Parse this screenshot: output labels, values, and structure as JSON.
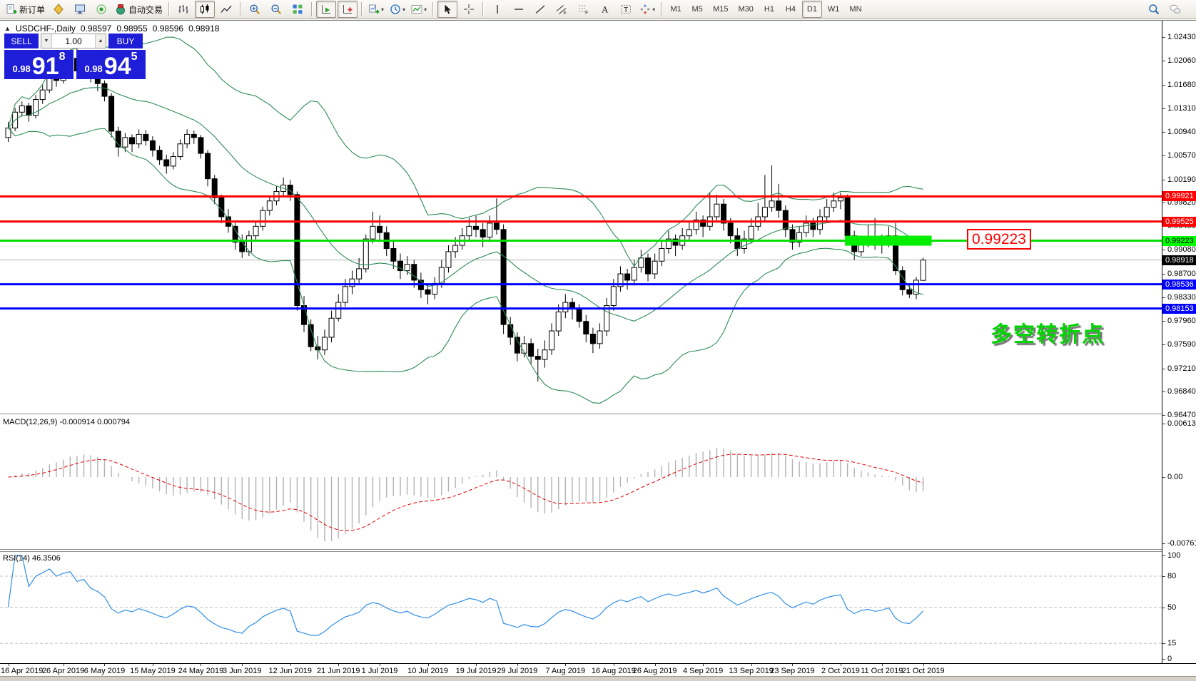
{
  "toolbar": {
    "groups": [
      {
        "items": [
          {
            "name": "new-order-button",
            "icon": "new-order",
            "label": "新订单"
          },
          {
            "name": "metaeditor-button",
            "icon": "metaeditor"
          },
          {
            "name": "terminal-button",
            "icon": "terminal"
          },
          {
            "name": "signals-button",
            "icon": "signals"
          },
          {
            "name": "autotrading-button",
            "icon": "autotrading",
            "label": "自动交易"
          }
        ]
      },
      {
        "items": [
          {
            "name": "bar-chart-button",
            "icon": "bar-chart"
          },
          {
            "name": "candlestick-button",
            "icon": "candlestick",
            "pressed": true
          },
          {
            "name": "line-chart-button",
            "icon": "line-chart"
          }
        ]
      },
      {
        "items": [
          {
            "name": "zoom-in-button",
            "icon": "zoom-in"
          },
          {
            "name": "zoom-out-button",
            "icon": "zoom-out"
          },
          {
            "name": "tile-windows-button",
            "icon": "tile-windows"
          }
        ]
      },
      {
        "items": [
          {
            "name": "auto-scroll-button",
            "icon": "auto-scroll",
            "pressed": true
          },
          {
            "name": "chart-shift-button",
            "icon": "chart-shift",
            "pressed": true
          }
        ]
      },
      {
        "items": [
          {
            "name": "new-chart-button",
            "icon": "new-chart",
            "dropdown": true
          },
          {
            "name": "profiles-button",
            "icon": "clock",
            "dropdown": true
          },
          {
            "name": "indicators-button",
            "icon": "indicators",
            "dropdown": true
          }
        ]
      },
      {
        "items": [
          {
            "name": "cursor-button",
            "icon": "cursor",
            "pressed": true
          },
          {
            "name": "crosshair-button",
            "icon": "crosshair"
          }
        ]
      },
      {
        "items": [
          {
            "name": "vertical-line-button",
            "icon": "vline"
          },
          {
            "name": "horizontal-line-button",
            "icon": "hline"
          },
          {
            "name": "trendline-button",
            "icon": "trendline"
          },
          {
            "name": "channel-button",
            "icon": "channel"
          },
          {
            "name": "fibonacci-button",
            "icon": "fibonacci"
          },
          {
            "name": "text-button",
            "icon": "text-a"
          },
          {
            "name": "text-label-button",
            "icon": "text-label"
          },
          {
            "name": "shapes-button",
            "icon": "shapes",
            "dropdown": true
          }
        ]
      },
      {
        "items": [
          {
            "name": "tf-m1-button",
            "text": "M1"
          },
          {
            "name": "tf-m5-button",
            "text": "M5"
          },
          {
            "name": "tf-m15-button",
            "text": "M15"
          },
          {
            "name": "tf-m30-button",
            "text": "M30"
          },
          {
            "name": "tf-h1-button",
            "text": "H1"
          },
          {
            "name": "tf-h4-button",
            "text": "H4"
          },
          {
            "name": "tf-d1-button",
            "text": "D1",
            "pressed": true
          },
          {
            "name": "tf-w1-button",
            "text": "W1"
          },
          {
            "name": "tf-mn-button",
            "text": "MN"
          }
        ]
      }
    ],
    "right_items": [
      {
        "name": "search-button",
        "icon": "search"
      },
      {
        "name": "chat-button",
        "icon": "chat"
      }
    ]
  },
  "chart": {
    "collapse_glyph": "▲",
    "title": "USDCHF-,Daily",
    "ohlc": {
      "open": "0.98597",
      "high": "0.98955",
      "low": "0.98596",
      "close": "0.98918"
    },
    "one_click": {
      "sell_label": "SELL",
      "buy_label": "BUY",
      "volume": "1.00",
      "spin_down_glyph": "▼",
      "spin_up_glyph": "▲",
      "sell_price": {
        "small": "0.98",
        "big": "91",
        "sup": "8"
      },
      "buy_price": {
        "small": "0.98",
        "big": "94",
        "sup": "5"
      }
    },
    "callout": {
      "text": "0.99223",
      "color": "#ff0000"
    },
    "annotation": {
      "text": "多空转折点",
      "color": "#00d400"
    }
  },
  "chart_data": {
    "type": "candlestick",
    "symbol": "USDCHF",
    "timeframe": "Daily",
    "price_axis": {
      "top": 1.02693,
      "bottom": 0.96496,
      "ticks": [
        "1.02430",
        "1.02060",
        "1.01680",
        "1.01310",
        "1.00940",
        "1.00570",
        "1.00190",
        "0.99820",
        "0.99450",
        "0.99080",
        "0.98700",
        "0.98330",
        "0.97960",
        "0.97590",
        "0.97210",
        "0.96840",
        "0.96470"
      ]
    },
    "candles": [
      [
        1.0085,
        1.011,
        1.0078,
        1.01
      ],
      [
        1.01,
        1.0132,
        1.0095,
        1.0125
      ],
      [
        1.0125,
        1.0142,
        1.0118,
        1.0135
      ],
      [
        1.0135,
        1.014,
        1.011,
        1.012
      ],
      [
        1.012,
        1.0152,
        1.0115,
        1.0145
      ],
      [
        1.0145,
        1.0168,
        1.0138,
        1.016
      ],
      [
        1.016,
        1.0192,
        1.0155,
        1.0185
      ],
      [
        1.0185,
        1.0195,
        1.0165,
        1.0175
      ],
      [
        1.0175,
        1.0202,
        1.017,
        1.0195
      ],
      [
        1.0195,
        1.0218,
        1.0188,
        1.021
      ],
      [
        1.021,
        1.0226,
        1.0182,
        1.019
      ],
      [
        1.019,
        1.0212,
        1.0183,
        1.0205
      ],
      [
        1.0205,
        1.0211,
        1.0172,
        1.018
      ],
      [
        1.018,
        1.0188,
        1.0158,
        1.017
      ],
      [
        1.017,
        1.0175,
        1.0142,
        1.015
      ],
      [
        1.015,
        1.0155,
        1.0085,
        1.0095
      ],
      [
        1.0095,
        1.0102,
        1.0055,
        1.007
      ],
      [
        1.007,
        1.0092,
        1.0062,
        1.0085
      ],
      [
        1.0085,
        1.009,
        1.0062,
        1.0075
      ],
      [
        1.0075,
        1.0098,
        1.0068,
        1.009
      ],
      [
        1.009,
        1.0097,
        1.0072,
        1.008
      ],
      [
        1.008,
        1.0087,
        1.0055,
        1.0065
      ],
      [
        1.0065,
        1.0072,
        1.0042,
        1.005
      ],
      [
        1.005,
        1.0058,
        1.0028,
        1.004
      ],
      [
        1.004,
        1.0062,
        1.0035,
        1.0055
      ],
      [
        1.0055,
        1.0082,
        1.005,
        1.0075
      ],
      [
        1.0075,
        1.0098,
        1.0068,
        1.009
      ],
      [
        1.009,
        1.0096,
        1.0075,
        1.0085
      ],
      [
        1.0085,
        1.0089,
        1.0052,
        1.006
      ],
      [
        1.006,
        1.0065,
        1.0008,
        1.002
      ],
      [
        1.002,
        1.0026,
        0.998,
        0.999
      ],
      [
        0.999,
        0.9995,
        0.995,
        0.996
      ],
      [
        0.996,
        0.9972,
        0.9935,
        0.9945
      ],
      [
        0.9945,
        0.995,
        0.9908,
        0.992
      ],
      [
        0.992,
        0.9932,
        0.9895,
        0.9905
      ],
      [
        0.9905,
        0.9938,
        0.9898,
        0.993
      ],
      [
        0.993,
        0.9952,
        0.9922,
        0.9945
      ],
      [
        0.9945,
        0.9976,
        0.9938,
        0.997
      ],
      [
        0.997,
        0.9992,
        0.9962,
        0.9985
      ],
      [
        0.9985,
        1.0008,
        0.9978,
        1.0
      ],
      [
        1.0,
        1.0022,
        0.9992,
        1.001
      ],
      [
        1.001,
        1.0018,
        0.9985,
        0.9995
      ],
      [
        0.9995,
        1.0,
        0.9812,
        0.982
      ],
      [
        0.982,
        0.9835,
        0.9778,
        0.979
      ],
      [
        0.979,
        0.9798,
        0.9748,
        0.9755
      ],
      [
        0.9755,
        0.9772,
        0.9735,
        0.975
      ],
      [
        0.975,
        0.9782,
        0.9742,
        0.977
      ],
      [
        0.977,
        0.9812,
        0.9762,
        0.98
      ],
      [
        0.98,
        0.9838,
        0.9795,
        0.9825
      ],
      [
        0.9825,
        0.9862,
        0.9818,
        0.985
      ],
      [
        0.985,
        0.9875,
        0.9838,
        0.9862
      ],
      [
        0.9862,
        0.9895,
        0.9855,
        0.9878
      ],
      [
        0.9878,
        0.9932,
        0.9872,
        0.9925
      ],
      [
        0.9925,
        0.9968,
        0.9918,
        0.9945
      ],
      [
        0.9945,
        0.9962,
        0.992,
        0.9935
      ],
      [
        0.9935,
        0.9945,
        0.9898,
        0.991
      ],
      [
        0.991,
        0.9922,
        0.9878,
        0.989
      ],
      [
        0.989,
        0.9902,
        0.9862,
        0.9875
      ],
      [
        0.9875,
        0.9898,
        0.9868,
        0.9885
      ],
      [
        0.9885,
        0.9892,
        0.9848,
        0.986
      ],
      [
        0.986,
        0.9872,
        0.9832,
        0.9845
      ],
      [
        0.9845,
        0.9855,
        0.9822,
        0.9838
      ],
      [
        0.9838,
        0.9865,
        0.983,
        0.9855
      ],
      [
        0.9855,
        0.9892,
        0.9848,
        0.988
      ],
      [
        0.988,
        0.9915,
        0.9872,
        0.9905
      ],
      [
        0.9905,
        0.9928,
        0.9895,
        0.9915
      ],
      [
        0.9915,
        0.9942,
        0.9908,
        0.993
      ],
      [
        0.993,
        0.9958,
        0.9922,
        0.9945
      ],
      [
        0.9945,
        0.9962,
        0.9928,
        0.994
      ],
      [
        0.994,
        0.995,
        0.9912,
        0.9928
      ],
      [
        0.9928,
        0.9962,
        0.992,
        0.995
      ],
      [
        0.995,
        0.9989,
        0.9932,
        0.994
      ],
      [
        0.994,
        0.9948,
        0.9775,
        0.979
      ],
      [
        0.979,
        0.9802,
        0.9758,
        0.977
      ],
      [
        0.977,
        0.9778,
        0.9732,
        0.9745
      ],
      [
        0.9745,
        0.9772,
        0.9738,
        0.976
      ],
      [
        0.976,
        0.9768,
        0.9728,
        0.974
      ],
      [
        0.974,
        0.9752,
        0.97,
        0.9735
      ],
      [
        0.9735,
        0.9765,
        0.9722,
        0.975
      ],
      [
        0.975,
        0.9792,
        0.9742,
        0.978
      ],
      [
        0.978,
        0.9822,
        0.9772,
        0.981
      ],
      [
        0.981,
        0.9838,
        0.98,
        0.9825
      ],
      [
        0.9825,
        0.9832,
        0.9798,
        0.9815
      ],
      [
        0.9815,
        0.9822,
        0.9785,
        0.9795
      ],
      [
        0.9795,
        0.9805,
        0.9762,
        0.9775
      ],
      [
        0.9775,
        0.9785,
        0.9745,
        0.976
      ],
      [
        0.976,
        0.9792,
        0.9752,
        0.978
      ],
      [
        0.978,
        0.9832,
        0.9772,
        0.982
      ],
      [
        0.982,
        0.9862,
        0.9812,
        0.985
      ],
      [
        0.985,
        0.9882,
        0.9842,
        0.987
      ],
      [
        0.987,
        0.9878,
        0.9845,
        0.986
      ],
      [
        0.986,
        0.9892,
        0.9852,
        0.988
      ],
      [
        0.988,
        0.9908,
        0.9872,
        0.9895
      ],
      [
        0.9895,
        0.9902,
        0.9858,
        0.987
      ],
      [
        0.987,
        0.9902,
        0.9862,
        0.989
      ],
      [
        0.989,
        0.9922,
        0.9882,
        0.991
      ],
      [
        0.991,
        0.9938,
        0.9902,
        0.9925
      ],
      [
        0.9925,
        0.9932,
        0.9898,
        0.9915
      ],
      [
        0.9915,
        0.9942,
        0.9908,
        0.993
      ],
      [
        0.993,
        0.9952,
        0.9922,
        0.994
      ],
      [
        0.994,
        0.9968,
        0.9932,
        0.9955
      ],
      [
        0.9955,
        0.9962,
        0.9928,
        0.9945
      ],
      [
        0.9945,
        0.9999,
        0.9938,
        0.996
      ],
      [
        0.996,
        0.9995,
        0.9952,
        0.998
      ],
      [
        0.998,
        0.9988,
        0.9938,
        0.995
      ],
      [
        0.995,
        0.9958,
        0.9918,
        0.993
      ],
      [
        0.993,
        0.9942,
        0.9898,
        0.991
      ],
      [
        0.991,
        0.9938,
        0.9902,
        0.9925
      ],
      [
        0.9925,
        0.9958,
        0.9918,
        0.9945
      ],
      [
        0.9945,
        0.9982,
        0.9938,
        0.996
      ],
      [
        0.996,
        1.0026,
        0.9952,
        0.9975
      ],
      [
        0.9975,
        1.0041,
        0.9968,
        0.9985
      ],
      [
        0.9985,
        1.0012,
        0.9958,
        0.997
      ],
      [
        0.997,
        0.9978,
        0.9928,
        0.994
      ],
      [
        0.994,
        0.9948,
        0.9908,
        0.992
      ],
      [
        0.992,
        0.9945,
        0.9912,
        0.9935
      ],
      [
        0.9935,
        0.9962,
        0.9928,
        0.995
      ],
      [
        0.995,
        0.9958,
        0.9928,
        0.994
      ],
      [
        0.994,
        0.9972,
        0.9932,
        0.996
      ],
      [
        0.996,
        0.9988,
        0.9952,
        0.9975
      ],
      [
        0.9975,
        0.9998,
        0.9968,
        0.9985
      ],
      [
        0.9985,
        0.9998,
        0.9972,
        0.999
      ],
      [
        0.999,
        0.9995,
        0.992,
        0.993
      ],
      [
        0.993,
        0.9938,
        0.9892,
        0.9905
      ],
      [
        0.9905,
        0.9928,
        0.9898,
        0.992
      ],
      [
        0.992,
        0.9948,
        0.9912,
        0.9925
      ],
      [
        0.9925,
        0.9958,
        0.9908,
        0.9915
      ],
      [
        0.9915,
        0.9932,
        0.9902,
        0.992
      ],
      [
        0.992,
        0.9945,
        0.9912,
        0.993
      ],
      [
        0.993,
        0.995,
        0.9868,
        0.9875
      ],
      [
        0.9875,
        0.9882,
        0.9836,
        0.9845
      ],
      [
        0.9845,
        0.9855,
        0.9832,
        0.9838
      ],
      [
        0.9838,
        0.9865,
        0.983,
        0.986
      ],
      [
        0.98597,
        0.98955,
        0.98596,
        0.98918
      ]
    ],
    "date_ticks": [
      {
        "t": "16 Apr 2019",
        "b": 0
      },
      {
        "t": "26 Apr 2019",
        "b": 8
      },
      {
        "t": "6 May 2019",
        "b": 14
      },
      {
        "t": "15 May 2019",
        "b": 21
      },
      {
        "t": "24 May 2019",
        "b": 28
      },
      {
        "t": "3 Jun 2019",
        "b": 34
      },
      {
        "t": "12 Jun 2019",
        "b": 41
      },
      {
        "t": "21 Jun 2019",
        "b": 48
      },
      {
        "t": "1 Jul 2019",
        "b": 54
      },
      {
        "t": "10 Jul 2019",
        "b": 61
      },
      {
        "t": "19 Jul 2019",
        "b": 68
      },
      {
        "t": "29 Jul 2019",
        "b": 74
      },
      {
        "t": "7 Aug 2019",
        "b": 81
      },
      {
        "t": "16 Aug 2019",
        "b": 88
      },
      {
        "t": "26 Aug 2019",
        "b": 94
      },
      {
        "t": "4 Sep 2019",
        "b": 101
      },
      {
        "t": "13 Sep 2019",
        "b": 108
      },
      {
        "t": "23 Sep 2019",
        "b": 114
      },
      {
        "t": "2 Oct 2019",
        "b": 121
      },
      {
        "t": "11 Oct 2019",
        "b": 127
      },
      {
        "t": "21 Oct 2019",
        "b": 133
      }
    ],
    "price_lines": [
      {
        "value": 0.99921,
        "label": "0.99921",
        "color": "#ff0000",
        "badge_bg": "#ff0000",
        "badge_fg": "#ffffff"
      },
      {
        "value": 0.99525,
        "label": "0.99525",
        "color": "#ff0000",
        "badge_bg": "#ff0000",
        "badge_fg": "#ffffff"
      },
      {
        "value": 0.99223,
        "label": "0.99223",
        "color": "#00e000",
        "badge_bg": "#00ff00",
        "badge_fg": "#000000"
      },
      {
        "value": 0.98536,
        "label": "0.98536",
        "color": "#0000ff",
        "badge_bg": "#0000ff",
        "badge_fg": "#ffffff"
      },
      {
        "value": 0.98153,
        "label": "0.98153",
        "color": "#0000ff",
        "badge_bg": "#0000ff",
        "badge_fg": "#ffffff"
      }
    ],
    "current_price": {
      "value": 0.98918,
      "label": "0.98918",
      "badge_bg": "#000000",
      "badge_fg": "#ffffff",
      "line_color": "#b4b4b4"
    },
    "highlight_box": {
      "price": 0.99223,
      "bar_start": 122,
      "bar_end": 134.6,
      "color": "#00ee00",
      "half_height": 7
    },
    "indicators": {
      "bollinger": {
        "period": 20,
        "deviation": 2,
        "color": "#2e8b57"
      },
      "macd": {
        "display": "MACD(12,26,9) -0.000914 0.000794",
        "fast": 12,
        "slow": 26,
        "signal": 9,
        "main_value": -0.000914,
        "signal_value": 0.000794,
        "hist_color": "#b2b2b2",
        "signal_color": "#e00000",
        "axis_ticks": [
          {
            "label": "0.00613",
            "value": 0.00613
          },
          {
            "label": "0.00",
            "value": 0
          },
          {
            "label": "-0.007612",
            "value": -0.007612
          }
        ]
      },
      "rsi": {
        "display": "RSI(14) 46.3506",
        "period": 14,
        "value": 46.3506,
        "color": "#2f8fe8",
        "levels": [
          80,
          50,
          15
        ],
        "axis_ticks": [
          {
            "label": "100",
            "value": 100
          },
          {
            "label": "80",
            "value": 80
          },
          {
            "label": "50",
            "value": 50
          },
          {
            "label": "15",
            "value": 15
          },
          {
            "label": "0",
            "value": 0
          }
        ]
      }
    }
  }
}
